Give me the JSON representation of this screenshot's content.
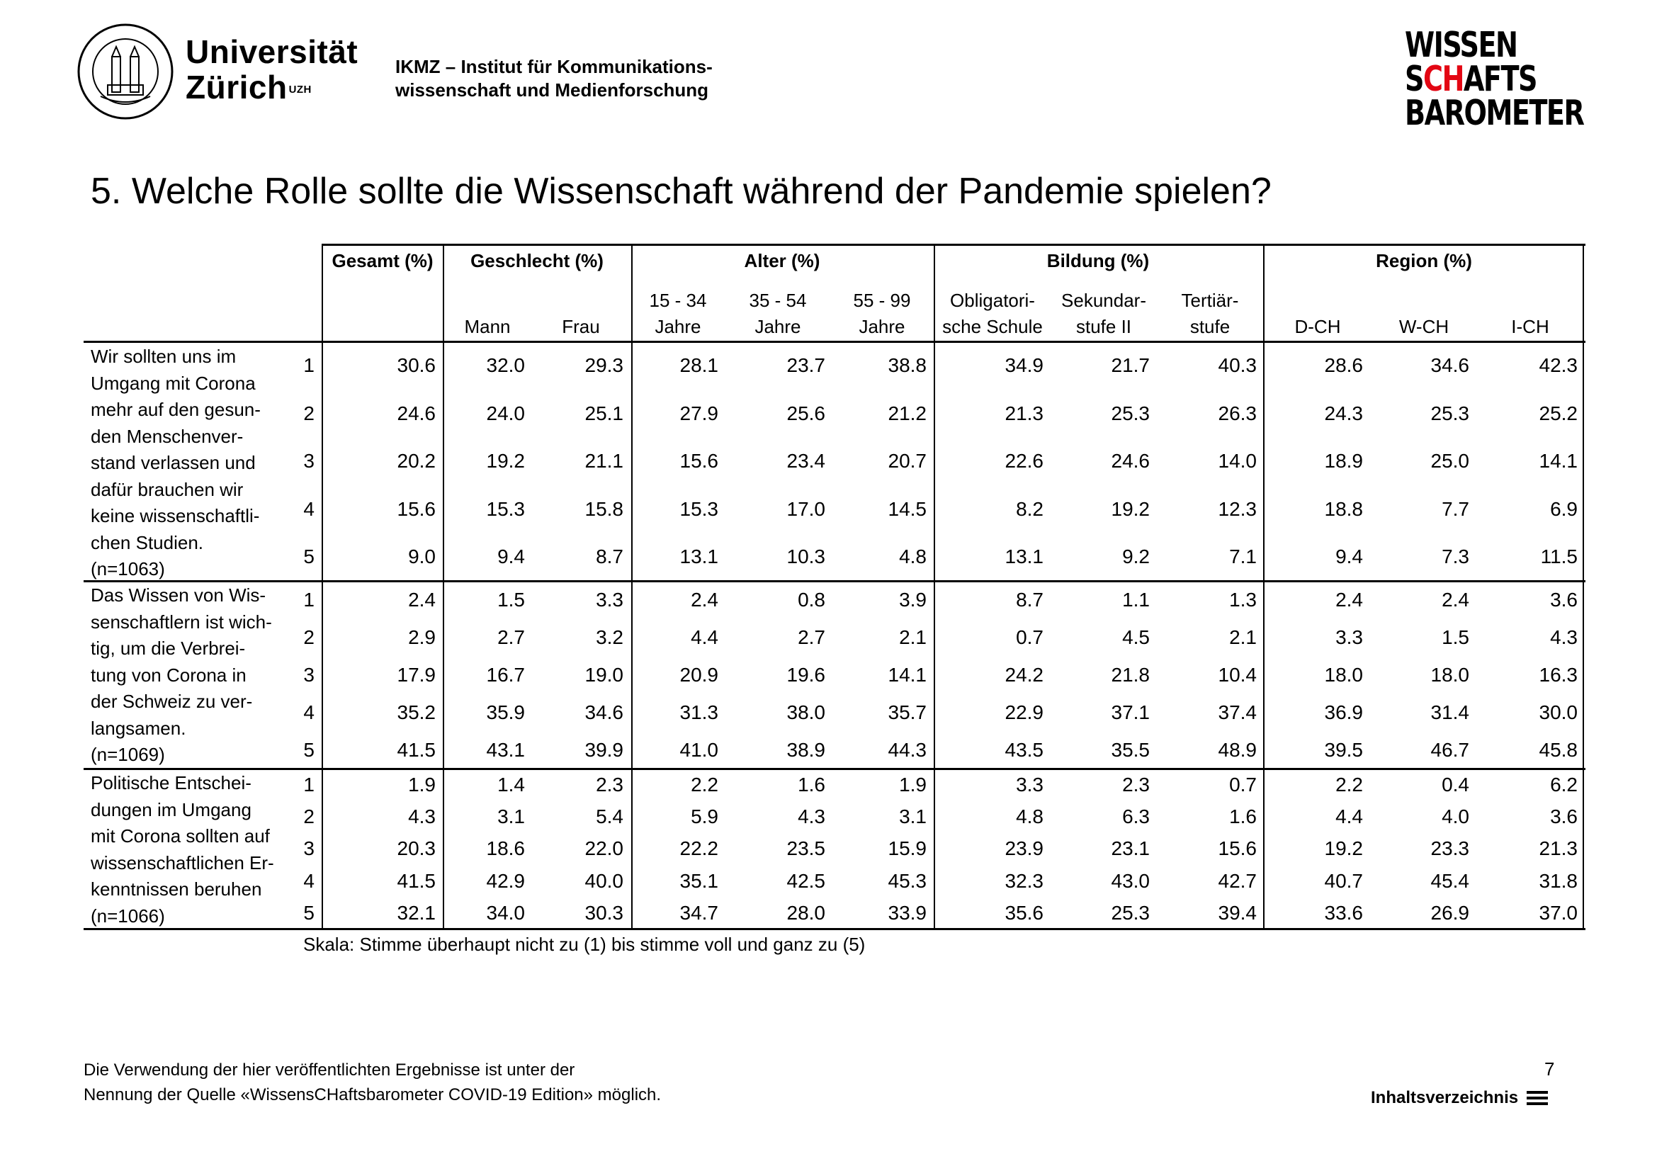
{
  "header": {
    "university_line1": "Universität",
    "university_line2": "Zürich",
    "university_sup": "UZH",
    "institute_line1": "IKMZ – Institut für Kommunikations-",
    "institute_line2": "wissenschaft und Medienforschung",
    "logo_line1": "WISSEN",
    "logo_line2_a": "S",
    "logo_line2_red": "CH",
    "logo_line2_b": "AFTS",
    "logo_line3": "BAROMETER",
    "accent_color": "#e30613"
  },
  "title": "5. Welche Rolle sollte die Wissenschaft während der Pandemie spielen?",
  "table": {
    "groups": [
      "Gesamt (%)",
      "Geschlecht (%)",
      "Alter (%)",
      "Bildung (%)",
      "Region (%)"
    ],
    "columns": [
      {
        "l1": "",
        "l2": ""
      },
      {
        "l1": "",
        "l2": "Mann"
      },
      {
        "l1": "",
        "l2": "Frau"
      },
      {
        "l1": "15 - 34",
        "l2": "Jahre"
      },
      {
        "l1": "35 - 54",
        "l2": "Jahre"
      },
      {
        "l1": "55 - 99",
        "l2": "Jahre"
      },
      {
        "l1": "Obligatori-",
        "l2": "sche Schule"
      },
      {
        "l1": "Sekundar-",
        "l2": "stufe II"
      },
      {
        "l1": "Tertiär-",
        "l2": "stufe"
      },
      {
        "l1": "",
        "l2": "D-CH"
      },
      {
        "l1": "",
        "l2": "W-CH"
      },
      {
        "l1": "",
        "l2": "I-CH"
      }
    ],
    "blocks": [
      {
        "label_lines": [
          "Wir sollten uns im",
          "Umgang mit Corona",
          "mehr auf den gesun-",
          "den Menschenver-",
          "stand verlassen und",
          "dafür brauchen wir",
          "keine wissenschaftli-",
          "chen Studien.",
          "(n=1063)"
        ],
        "rows": [
          {
            "scale": "1",
            "values": [
              "30.6",
              "32.0",
              "29.3",
              "28.1",
              "23.7",
              "38.8",
              "34.9",
              "21.7",
              "40.3",
              "28.6",
              "34.6",
              "42.3"
            ]
          },
          {
            "scale": "2",
            "values": [
              "24.6",
              "24.0",
              "25.1",
              "27.9",
              "25.6",
              "21.2",
              "21.3",
              "25.3",
              "26.3",
              "24.3",
              "25.3",
              "25.2"
            ]
          },
          {
            "scale": "3",
            "values": [
              "20.2",
              "19.2",
              "21.1",
              "15.6",
              "23.4",
              "20.7",
              "22.6",
              "24.6",
              "14.0",
              "18.9",
              "25.0",
              "14.1"
            ]
          },
          {
            "scale": "4",
            "values": [
              "15.6",
              "15.3",
              "15.8",
              "15.3",
              "17.0",
              "14.5",
              "8.2",
              "19.2",
              "12.3",
              "18.8",
              "7.7",
              "6.9"
            ]
          },
          {
            "scale": "5",
            "values": [
              "9.0",
              "9.4",
              "8.7",
              "13.1",
              "10.3",
              "4.8",
              "13.1",
              "9.2",
              "7.1",
              "9.4",
              "7.3",
              "11.5"
            ]
          }
        ]
      },
      {
        "label_lines": [
          "Das Wissen von Wis-",
          "senschaftlern ist wich-",
          "tig, um die Verbrei-",
          "tung von Corona in",
          "der Schweiz zu ver-",
          "langsamen.",
          "(n=1069)"
        ],
        "rows": [
          {
            "scale": "1",
            "values": [
              "2.4",
              "1.5",
              "3.3",
              "2.4",
              "0.8",
              "3.9",
              "8.7",
              "1.1",
              "1.3",
              "2.4",
              "2.4",
              "3.6"
            ]
          },
          {
            "scale": "2",
            "values": [
              "2.9",
              "2.7",
              "3.2",
              "4.4",
              "2.7",
              "2.1",
              "0.7",
              "4.5",
              "2.1",
              "3.3",
              "1.5",
              "4.3"
            ]
          },
          {
            "scale": "3",
            "values": [
              "17.9",
              "16.7",
              "19.0",
              "20.9",
              "19.6",
              "14.1",
              "24.2",
              "21.8",
              "10.4",
              "18.0",
              "18.0",
              "16.3"
            ]
          },
          {
            "scale": "4",
            "values": [
              "35.2",
              "35.9",
              "34.6",
              "31.3",
              "38.0",
              "35.7",
              "22.9",
              "37.1",
              "37.4",
              "36.9",
              "31.4",
              "30.0"
            ]
          },
          {
            "scale": "5",
            "values": [
              "41.5",
              "43.1",
              "39.9",
              "41.0",
              "38.9",
              "44.3",
              "43.5",
              "35.5",
              "48.9",
              "39.5",
              "46.7",
              "45.8"
            ]
          }
        ]
      },
      {
        "label_lines": [
          "Politische Entschei-",
          "dungen im Umgang",
          "mit Corona sollten auf",
          "wissenschaftlichen Er-",
          "kenntnissen beruhen",
          "(n=1066)"
        ],
        "rows": [
          {
            "scale": "1",
            "values": [
              "1.9",
              "1.4",
              "2.3",
              "2.2",
              "1.6",
              "1.9",
              "3.3",
              "2.3",
              "0.7",
              "2.2",
              "0.4",
              "6.2"
            ]
          },
          {
            "scale": "2",
            "values": [
              "4.3",
              "3.1",
              "5.4",
              "5.9",
              "4.3",
              "3.1",
              "4.8",
              "6.3",
              "1.6",
              "4.4",
              "4.0",
              "3.6"
            ]
          },
          {
            "scale": "3",
            "values": [
              "20.3",
              "18.6",
              "22.0",
              "22.2",
              "23.5",
              "15.9",
              "23.9",
              "23.1",
              "15.6",
              "19.2",
              "23.3",
              "21.3"
            ]
          },
          {
            "scale": "4",
            "values": [
              "41.5",
              "42.9",
              "40.0",
              "35.1",
              "42.5",
              "45.3",
              "32.3",
              "43.0",
              "42.7",
              "40.7",
              "45.4",
              "31.8"
            ]
          },
          {
            "scale": "5",
            "values": [
              "32.1",
              "34.0",
              "30.3",
              "34.7",
              "28.0",
              "33.9",
              "35.6",
              "25.3",
              "39.4",
              "33.6",
              "26.9",
              "37.0"
            ]
          }
        ]
      }
    ],
    "scale_note": "Skala: Stimme überhaupt nicht zu (1) bis stimme voll und ganz zu (5)"
  },
  "footer": {
    "note_line1": "Die Verwendung der hier veröffentlichten Ergebnisse ist unter der",
    "note_line2": "Nennung der Quelle «WissensCHaftsbarometer COVID-19 Edition» möglich.",
    "page_number": "7",
    "toc_label": "Inhaltsverzeichnis"
  }
}
